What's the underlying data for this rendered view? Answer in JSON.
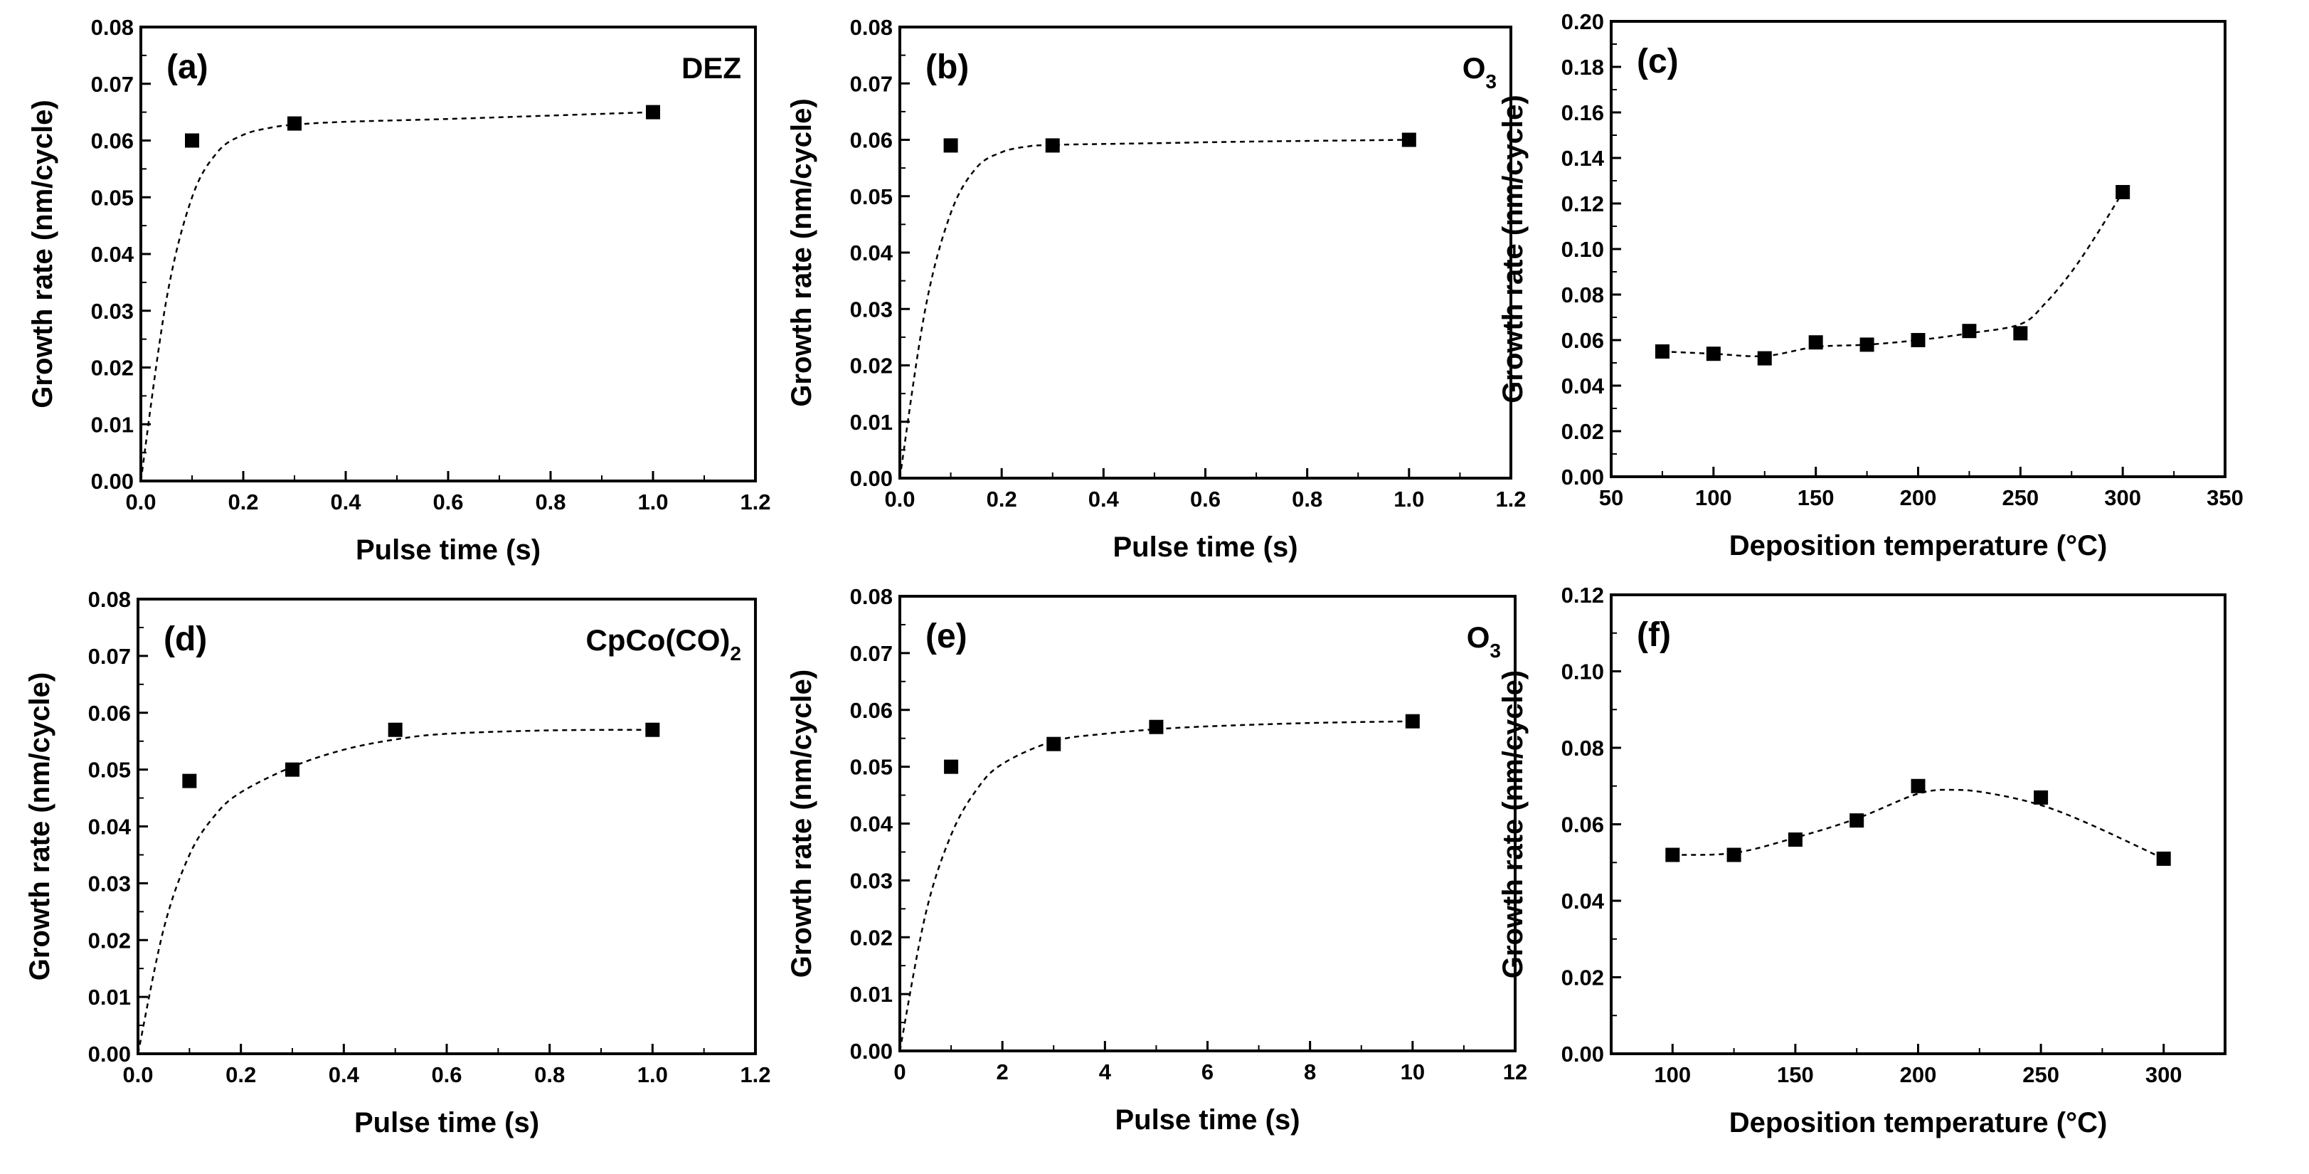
{
  "colors": {
    "background": "#ffffff",
    "ink": "#000000"
  },
  "chart_data": [
    {
      "type": "scatter",
      "panel_label": "(a)",
      "annotation": {
        "text": "DEZ",
        "sub": ""
      },
      "xlabel": "Pulse time (s)",
      "ylabel": "Growth rate (nm/cycle)",
      "xlim": [
        0.0,
        1.2
      ],
      "ylim": [
        0.0,
        0.08
      ],
      "x_ticks": [
        "0.0",
        "0.2",
        "0.4",
        "0.6",
        "0.8",
        "1.0",
        "1.2"
      ],
      "y_ticks": [
        "0.00",
        "0.01",
        "0.02",
        "0.03",
        "0.04",
        "0.05",
        "0.06",
        "0.07",
        "0.08"
      ],
      "x": [
        0.1,
        0.3,
        1.0
      ],
      "y": [
        0.06,
        0.063,
        0.065
      ],
      "fit_curve": {
        "style": "dashed",
        "x": [
          0.0,
          0.05,
          0.1,
          0.15,
          0.2,
          0.25,
          0.3,
          0.4,
          0.6,
          0.8,
          1.0
        ],
        "y": [
          0.0,
          0.032,
          0.05,
          0.058,
          0.061,
          0.0622,
          0.0628,
          0.0633,
          0.0638,
          0.0644,
          0.065
        ]
      }
    },
    {
      "type": "scatter",
      "panel_label": "(b)",
      "annotation": {
        "text": "O",
        "sub": "3"
      },
      "xlabel": "Pulse time (s)",
      "ylabel": "Growth rate (nm/cycle)",
      "xlim": [
        0.0,
        1.2
      ],
      "ylim": [
        0.0,
        0.08
      ],
      "x_ticks": [
        "0.0",
        "0.2",
        "0.4",
        "0.6",
        "0.8",
        "1.0",
        "1.2"
      ],
      "y_ticks": [
        "0.00",
        "0.01",
        "0.02",
        "0.03",
        "0.04",
        "0.05",
        "0.06",
        "0.07",
        "0.08"
      ],
      "x": [
        0.1,
        0.3,
        1.0
      ],
      "y": [
        0.059,
        0.059,
        0.06
      ],
      "fit_curve": {
        "style": "dashed",
        "x": [
          0.0,
          0.05,
          0.1,
          0.15,
          0.2,
          0.25,
          0.3,
          0.5,
          0.7,
          1.0
        ],
        "y": [
          0.0,
          0.03,
          0.047,
          0.055,
          0.0578,
          0.0588,
          0.0591,
          0.0594,
          0.0597,
          0.06
        ]
      }
    },
    {
      "type": "scatter",
      "panel_label": "(c)",
      "annotation": {
        "text": "",
        "sub": ""
      },
      "xlabel": "Deposition temperature (°C)",
      "ylabel": "Growth rate (nm/cycle)",
      "xlim": [
        50,
        350
      ],
      "ylim": [
        0.0,
        0.2
      ],
      "x_ticks": [
        "50",
        "100",
        "150",
        "200",
        "250",
        "300",
        "350"
      ],
      "y_ticks": [
        "0.00",
        "0.02",
        "0.04",
        "0.06",
        "0.08",
        "0.10",
        "0.12",
        "0.14",
        "0.16",
        "0.18",
        "0.20"
      ],
      "x": [
        75,
        100,
        125,
        150,
        175,
        200,
        225,
        250,
        300
      ],
      "y": [
        0.055,
        0.054,
        0.052,
        0.059,
        0.058,
        0.06,
        0.064,
        0.063,
        0.125
      ],
      "fit_curve": {
        "style": "dashed",
        "x": [
          75,
          100,
          125,
          150,
          175,
          200,
          225,
          250,
          262,
          275,
          287,
          300
        ],
        "y": [
          0.055,
          0.054,
          0.053,
          0.057,
          0.058,
          0.06,
          0.063,
          0.067,
          0.076,
          0.09,
          0.106,
          0.125
        ]
      }
    },
    {
      "type": "scatter",
      "panel_label": "(d)",
      "annotation": {
        "text": "CpCo(CO)",
        "sub": "2"
      },
      "xlabel": "Pulse time (s)",
      "ylabel": "Growth rate (nm/cycle)",
      "xlim": [
        0.0,
        1.2
      ],
      "ylim": [
        0.0,
        0.08
      ],
      "x_ticks": [
        "0.0",
        "0.2",
        "0.4",
        "0.6",
        "0.8",
        "1.0",
        "1.2"
      ],
      "y_ticks": [
        "0.00",
        "0.01",
        "0.02",
        "0.03",
        "0.04",
        "0.05",
        "0.06",
        "0.07",
        "0.08"
      ],
      "x": [
        0.1,
        0.3,
        0.5,
        1.0
      ],
      "y": [
        0.048,
        0.05,
        0.057,
        0.057
      ],
      "fit_curve": {
        "style": "dashed",
        "x": [
          0.0,
          0.05,
          0.1,
          0.15,
          0.2,
          0.3,
          0.4,
          0.5,
          0.6,
          0.8,
          1.0
        ],
        "y": [
          0.0,
          0.022,
          0.035,
          0.042,
          0.046,
          0.0505,
          0.0535,
          0.0553,
          0.0563,
          0.0569,
          0.057
        ]
      }
    },
    {
      "type": "scatter",
      "panel_label": "(e)",
      "annotation": {
        "text": "O",
        "sub": "3"
      },
      "xlabel": "Pulse time (s)",
      "ylabel": "Growth rate (nm/cycle)",
      "xlim": [
        0,
        12
      ],
      "ylim": [
        0.0,
        0.08
      ],
      "x_ticks": [
        "0",
        "2",
        "4",
        "6",
        "8",
        "10",
        "12"
      ],
      "y_ticks": [
        "0.00",
        "0.01",
        "0.02",
        "0.03",
        "0.04",
        "0.05",
        "0.06",
        "0.07",
        "0.08"
      ],
      "x": [
        1,
        3,
        5,
        10
      ],
      "y": [
        0.05,
        0.054,
        0.057,
        0.058
      ],
      "fit_curve": {
        "style": "dashed",
        "x": [
          0,
          0.5,
          1,
          1.5,
          2,
          3,
          4,
          5,
          6,
          8,
          10
        ],
        "y": [
          0.0,
          0.024,
          0.038,
          0.046,
          0.0505,
          0.0545,
          0.0558,
          0.0566,
          0.0571,
          0.0577,
          0.058
        ]
      }
    },
    {
      "type": "scatter",
      "panel_label": "(f)",
      "annotation": {
        "text": "",
        "sub": ""
      },
      "xlabel": "Deposition temperature (°C)",
      "ylabel": "Growth rate (nm/cycle)",
      "xlim": [
        75,
        325
      ],
      "ylim": [
        0.0,
        0.12
      ],
      "x_ticks": [
        "100",
        "150",
        "200",
        "250",
        "300"
      ],
      "y_ticks": [
        "0.00",
        "0.02",
        "0.04",
        "0.06",
        "0.08",
        "0.10",
        "0.12"
      ],
      "x": [
        100,
        125,
        150,
        175,
        200,
        250,
        300
      ],
      "y": [
        0.052,
        0.052,
        0.056,
        0.061,
        0.07,
        0.067,
        0.051
      ],
      "fit_curve": {
        "style": "dashed",
        "x": [
          100,
          125,
          150,
          175,
          200,
          215,
          230,
          250,
          270,
          300
        ],
        "y": [
          0.052,
          0.0525,
          0.0565,
          0.0615,
          0.068,
          0.069,
          0.068,
          0.065,
          0.06,
          0.051
        ]
      }
    }
  ]
}
